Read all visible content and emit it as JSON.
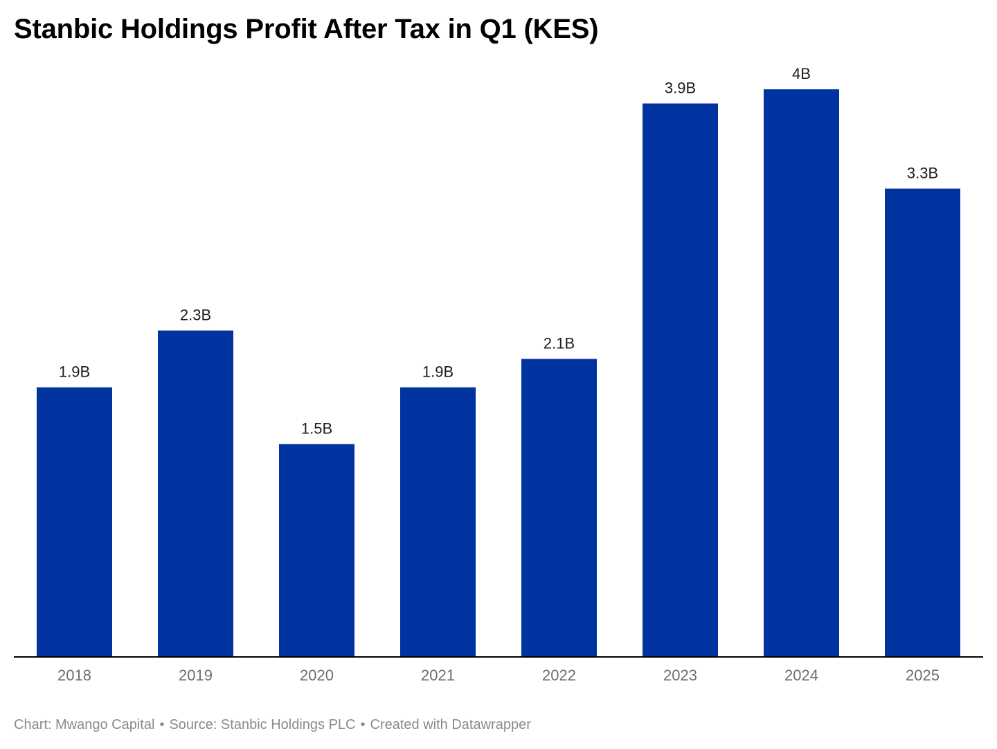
{
  "title": "Stanbic Holdings Profit After Tax in Q1 (KES)",
  "footer": {
    "chart_by": "Chart: Mwango Capital",
    "source": "Source: Stanbic Holdings PLC",
    "created": "Created with Datawrapper",
    "separator": "•"
  },
  "colors": {
    "bar": "#0033a0",
    "value_label": "#1d1d1d",
    "tick_label": "#6e6e6e",
    "axis": "#000000"
  },
  "chart_data": {
    "type": "bar",
    "title": "Stanbic Holdings Profit After Tax in Q1 (KES)",
    "categories": [
      "2018",
      "2019",
      "2020",
      "2021",
      "2022",
      "2023",
      "2024",
      "2025"
    ],
    "values": [
      1.9,
      2.3,
      1.5,
      1.9,
      2.1,
      3.9,
      4.0,
      3.3
    ],
    "value_labels": [
      "1.9B",
      "2.3B",
      "1.5B",
      "1.9B",
      "2.1B",
      "3.9B",
      "4B",
      "3.3B"
    ],
    "unit": "B KES",
    "xlabel": "",
    "ylabel": "",
    "ylim": [
      0,
      4.0
    ],
    "grid": false,
    "legend": "none"
  }
}
